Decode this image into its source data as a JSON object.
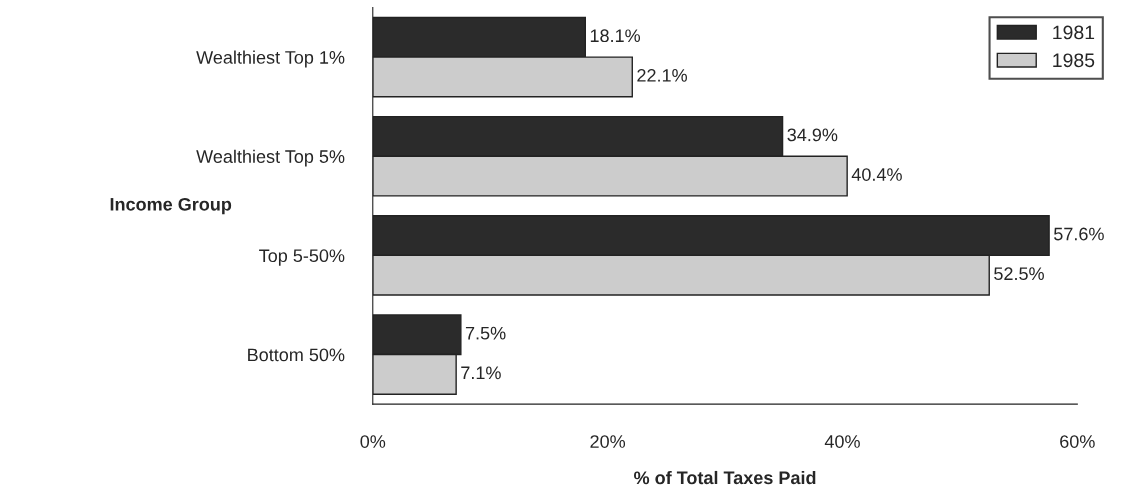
{
  "chart_data": {
    "type": "bar",
    "orientation": "horizontal",
    "categories": [
      "Wealthiest Top 1%",
      "Wealthiest Top 5%",
      "Top 5-50%",
      "Bottom 50%"
    ],
    "series": [
      {
        "name": "1981",
        "color": "#2b2b2b",
        "values": [
          18.1,
          34.9,
          57.6,
          7.5
        ],
        "value_labels": [
          "18.1%",
          "34.9%",
          "57.6%",
          "7.5%"
        ]
      },
      {
        "name": "1985",
        "color": "#cccccc",
        "values": [
          22.1,
          40.4,
          52.5,
          7.1
        ],
        "value_labels": [
          "22.1%",
          "40.4%",
          "52.5%",
          "7.1%"
        ]
      }
    ],
    "xlim": [
      0,
      60
    ],
    "xticks": [
      {
        "value": 0,
        "label": "0%"
      },
      {
        "value": 20,
        "label": "20%"
      },
      {
        "value": 40,
        "label": "40%"
      },
      {
        "value": 60,
        "label": "60%"
      }
    ],
    "xlabel": "% of Total Taxes Paid",
    "ylabel": "Income Group",
    "legend": "top right",
    "grid": false
  }
}
